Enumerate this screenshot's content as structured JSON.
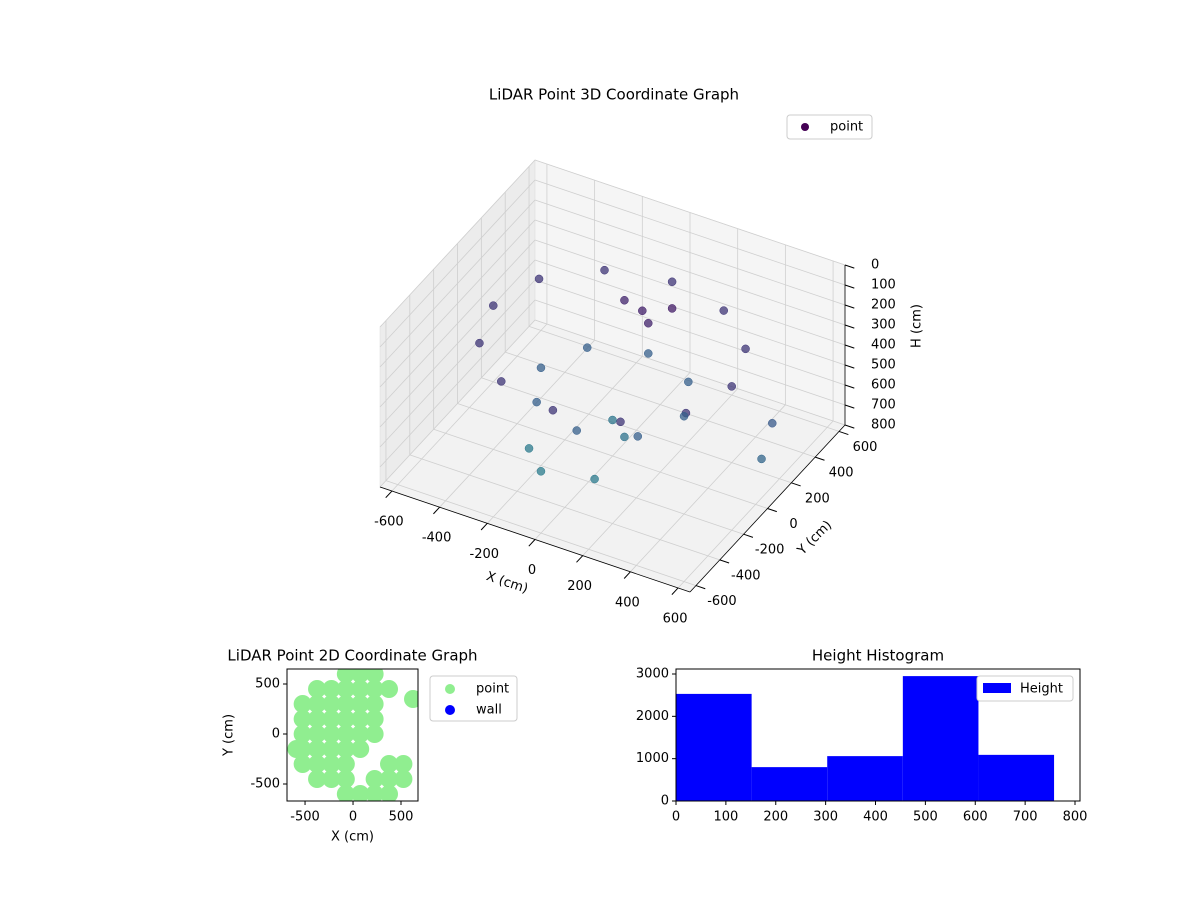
{
  "chart_data": [
    {
      "type": "scatter3d",
      "title": "LiDAR Point 3D Coordinate Graph",
      "xlabel": "X (cm)",
      "ylabel": "Y (cm)",
      "zlabel": "H (cm)",
      "xlim": [
        -650,
        650
      ],
      "ylim": [
        -650,
        650
      ],
      "zlim": [
        800,
        0
      ],
      "xticks": [
        -600,
        -400,
        -200,
        0,
        200,
        400,
        600
      ],
      "yticks": [
        -600,
        -400,
        -200,
        0,
        200,
        400,
        600
      ],
      "zticks": [
        0,
        100,
        200,
        300,
        400,
        500,
        600,
        700,
        800
      ],
      "colormap": [
        "#440154",
        "#3b528b",
        "#21918c"
      ],
      "grid": true,
      "legend": "upper right",
      "series": [
        {
          "name": "point",
          "x": [
            500,
            433,
            250,
            0,
            -250,
            -433,
            -500,
            -433,
            -250,
            0,
            250,
            433,
            300,
            212,
            0,
            -212,
            -300,
            -212,
            0,
            212,
            0,
            100,
            50,
            150,
            100,
            -50,
            -200,
            -100,
            100,
            620,
            650
          ],
          "y": [
            0,
            250,
            433,
            500,
            433,
            250,
            0,
            -250,
            -433,
            -500,
            -433,
            -250,
            0,
            212,
            300,
            212,
            0,
            -212,
            -300,
            -212,
            0,
            -100,
            150,
            200,
            100,
            200,
            -300,
            -400,
            -350,
            100,
            -50
          ],
          "z": [
            250,
            250,
            250,
            250,
            250,
            250,
            250,
            250,
            250,
            250,
            250,
            250,
            480,
            480,
            480,
            480,
            480,
            480,
            480,
            480,
            620,
            600,
            150,
            130,
            160,
            170,
            650,
            660,
            650,
            450,
            520
          ]
        }
      ]
    },
    {
      "type": "scatter",
      "title": "LiDAR Point 2D Coordinate Graph",
      "xlabel": "X (cm)",
      "ylabel": "Y (cm)",
      "xlim": [
        -688,
        677
      ],
      "ylim": [
        -670,
        650
      ],
      "xticks": [
        -500,
        0,
        500
      ],
      "yticks": [
        -500,
        0,
        500
      ],
      "legend": "outside right",
      "series": [
        {
          "name": "point",
          "color": "#90ee90",
          "x": [
            -75,
            75,
            225,
            -375,
            -225,
            -75,
            75,
            225,
            375,
            -525,
            -375,
            -225,
            -75,
            75,
            225,
            -525,
            -375,
            -225,
            -75,
            75,
            225,
            -525,
            -375,
            -225,
            -75,
            75,
            225,
            -525,
            -375,
            -225,
            -75,
            75,
            -525,
            -375,
            -225,
            -75,
            375,
            525,
            -375,
            -225,
            -75,
            225,
            375,
            525,
            -75,
            75,
            225,
            375,
            625,
            -590
          ],
          "y": [
            600,
            600,
            600,
            450,
            450,
            450,
            450,
            450,
            450,
            300,
            300,
            300,
            300,
            300,
            300,
            150,
            150,
            150,
            150,
            150,
            150,
            0,
            0,
            0,
            0,
            0,
            0,
            -150,
            -150,
            -150,
            -150,
            -150,
            -300,
            -300,
            -300,
            -300,
            -300,
            -300,
            -450,
            -450,
            -450,
            -450,
            -450,
            -450,
            -600,
            -600,
            -600,
            -600,
            350,
            -150
          ]
        },
        {
          "name": "wall",
          "color": "#0000ff",
          "x": [],
          "y": []
        }
      ]
    },
    {
      "type": "histogram",
      "title": "Height Histogram",
      "bins": [
        0,
        151.6,
        303.2,
        454.8,
        606.4,
        758
      ],
      "xlim": [
        0,
        810
      ],
      "ylim": [
        0,
        3118
      ],
      "xticks": [
        0,
        100,
        200,
        300,
        400,
        500,
        600,
        700,
        800
      ],
      "yticks": [
        0,
        1000,
        2000,
        3000
      ],
      "legend": "upper right",
      "series": [
        {
          "name": "Height",
          "color": "#0000ff",
          "values": [
            2530,
            800,
            1060,
            2950,
            1090
          ]
        }
      ]
    }
  ]
}
